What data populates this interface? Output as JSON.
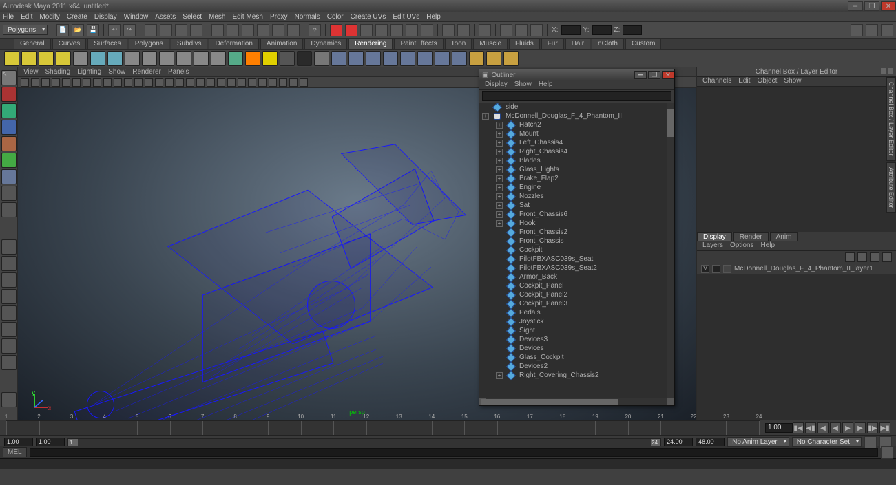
{
  "title": "Autodesk Maya 2011 x64: untitled*",
  "menus": [
    "File",
    "Edit",
    "Modify",
    "Create",
    "Display",
    "Window",
    "Assets",
    "Select",
    "Mesh",
    "Edit Mesh",
    "Proxy",
    "Normals",
    "Color",
    "Create UVs",
    "Edit UVs",
    "Help"
  ],
  "module_dropdown": "Polygons",
  "xyz": {
    "x": "X:",
    "y": "Y:",
    "z": "Z:"
  },
  "shelf_tabs": [
    "General",
    "Curves",
    "Surfaces",
    "Polygons",
    "Subdivs",
    "Deformation",
    "Animation",
    "Dynamics",
    "Rendering",
    "PaintEffects",
    "Toon",
    "Muscle",
    "Fluids",
    "Fur",
    "Hair",
    "nCloth",
    "Custom"
  ],
  "shelf_active": 8,
  "shelf_colors": [
    "#d8c838",
    "#d8c838",
    "#d8c838",
    "#d8c838",
    "#888",
    "#6ab",
    "#6ab",
    "#888",
    "#888",
    "#888",
    "#888",
    "#888",
    "#888",
    "#5a8",
    "#ff7f00",
    "#e0d000",
    "#555",
    "#2a2a2a",
    "#777",
    "#679",
    "#679",
    "#679",
    "#679",
    "#679",
    "#679",
    "#679",
    "#679",
    "#c8a040",
    "#c8a040",
    "#c8a040"
  ],
  "panel_menus": [
    "View",
    "Shading",
    "Lighting",
    "Show",
    "Renderer",
    "Panels"
  ],
  "viewport_label": "persp",
  "channelbox": {
    "title": "Channel Box / Layer Editor",
    "tabs": [
      "Channels",
      "Edit",
      "Object",
      "Show"
    ],
    "layer_tabs": [
      "Display",
      "Render",
      "Anim"
    ],
    "layer_sub": [
      "Layers",
      "Options",
      "Help"
    ],
    "layer_v": "V",
    "layer_name": "McDonnell_Douglas_F_4_Phantom_II_layer1"
  },
  "side_tabs": [
    "Channel Box / Layer Editor",
    "Attribute Editor"
  ],
  "outliner": {
    "title": "Outliner",
    "menus": [
      "Display",
      "Show",
      "Help"
    ],
    "side": "side",
    "root": "McDonnell_Douglas_F_4_Phantom_II",
    "nodes": [
      "Hatch2",
      "Mount",
      "Left_Chassis4",
      "Right_Chassis4",
      "Blades",
      "Glass_Lights",
      "Brake_Flap2",
      "Engine",
      "Nozzles",
      "Sat",
      "Front_Chassis6",
      "Hook",
      "Front_Chassis2",
      "Front_Chassis",
      "Cockpit",
      "PilotFBXASC039s_Seat",
      "PilotFBXASC039s_Seat2",
      "Armor_Back",
      "Cockpit_Panel",
      "Cockpit_Panel2",
      "Cockpit_Panel3",
      "Pedals",
      "Joystick",
      "Sight",
      "Devices3",
      "Devices",
      "Glass_Cockpit",
      "Devices2",
      "Right_Covering_Chassis2"
    ]
  },
  "time": {
    "ticks": [
      1,
      2,
      3,
      4,
      5,
      6,
      7,
      8,
      9,
      10,
      11,
      12,
      13,
      14,
      15,
      16,
      17,
      18,
      19,
      20,
      21,
      22,
      23,
      24
    ],
    "cur": "1.00",
    "range_start": "1.00",
    "range_in": "1.00",
    "range_out": "24.00",
    "range_end": "48.00",
    "anim_layer": "No Anim Layer",
    "char_set": "No Character Set",
    "in_handle": "1",
    "out_handle": "24"
  },
  "cmd": "MEL",
  "colors": {
    "wire": "#1818ff"
  }
}
